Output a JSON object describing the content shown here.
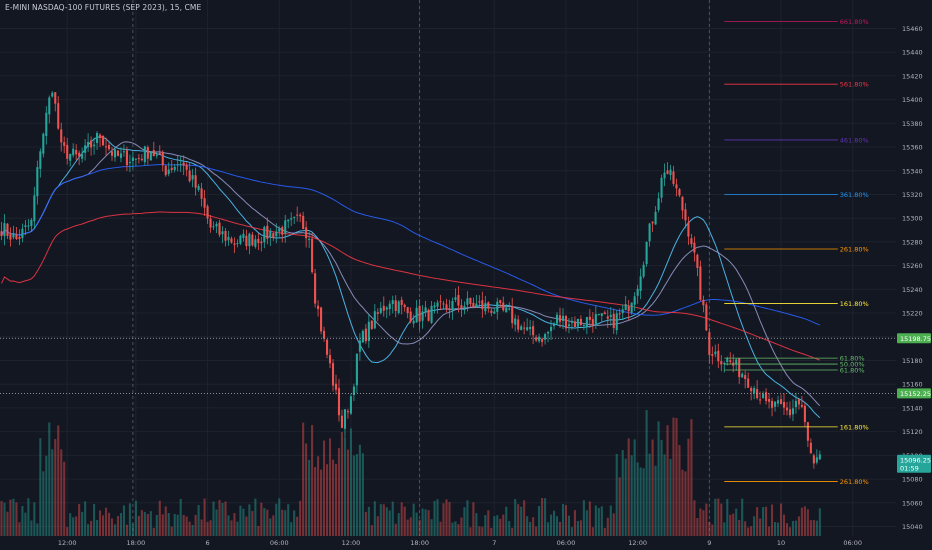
{
  "header": {
    "title": "E-MINI NASDAQ-100 FUTURES (SEP 2023), 15, CME"
  },
  "colors": {
    "background": "#131722",
    "up": "#26a69a",
    "down": "#ef5350",
    "grid": "#1e222d",
    "text": "#b2b5be",
    "ma_blue": "#2962ff",
    "ma_red": "#f23645",
    "ma_light_blue": "#4fc3f7",
    "ma_lavender": "#9598c6"
  },
  "chart_data": {
    "type": "candlestick",
    "ylim": [
      15032,
      15484
    ],
    "y_ticks": [
      15040,
      15060,
      15080,
      15100,
      15120,
      15140,
      15160,
      15180,
      15200,
      15220,
      15240,
      15260,
      15280,
      15300,
      15320,
      15340,
      15360,
      15380,
      15400,
      15420,
      15440,
      15460
    ],
    "x_tick_labels": [
      {
        "label": "12:00",
        "bar": 22
      },
      {
        "label": "18:00",
        "bar": 45
      },
      {
        "label": "6",
        "bar": 69
      },
      {
        "label": "06:00",
        "bar": 93
      },
      {
        "label": "12:00",
        "bar": 117
      },
      {
        "label": "18:00",
        "bar": 140
      },
      {
        "label": "7",
        "bar": 165
      },
      {
        "label": "06:00",
        "bar": 189
      },
      {
        "label": "12:00",
        "bar": 213
      },
      {
        "label": "9",
        "bar": 237
      },
      {
        "label": "10",
        "bar": 261
      },
      {
        "label": "06:00",
        "bar": 285
      }
    ],
    "session_separators": [
      44,
      140,
      237
    ],
    "price_path": [
      [
        0,
        15292
      ],
      [
        5,
        15282
      ],
      [
        10,
        15296
      ],
      [
        13,
        15360
      ],
      [
        17,
        15412
      ],
      [
        20,
        15358
      ],
      [
        26,
        15350
      ],
      [
        33,
        15370
      ],
      [
        38,
        15352
      ],
      [
        45,
        15350
      ],
      [
        50,
        15358
      ],
      [
        55,
        15341
      ],
      [
        60,
        15348
      ],
      [
        66,
        15322
      ],
      [
        70,
        15292
      ],
      [
        78,
        15280
      ],
      [
        86,
        15284
      ],
      [
        93,
        15290
      ],
      [
        100,
        15298
      ],
      [
        103,
        15286
      ],
      [
        105,
        15235
      ],
      [
        108,
        15195
      ],
      [
        110,
        15175
      ],
      [
        114,
        15125
      ],
      [
        117,
        15150
      ],
      [
        120,
        15195
      ],
      [
        125,
        15215
      ],
      [
        130,
        15232
      ],
      [
        136,
        15220
      ],
      [
        140,
        15218
      ],
      [
        146,
        15222
      ],
      [
        152,
        15228
      ],
      [
        160,
        15226
      ],
      [
        165,
        15224
      ],
      [
        170,
        15218
      ],
      [
        177,
        15202
      ],
      [
        182,
        15200
      ],
      [
        186,
        15215
      ],
      [
        193,
        15212
      ],
      [
        198,
        15216
      ],
      [
        204,
        15212
      ],
      [
        209,
        15222
      ],
      [
        213,
        15246
      ],
      [
        218,
        15300
      ],
      [
        222,
        15342
      ],
      [
        225,
        15330
      ],
      [
        228,
        15308
      ],
      [
        231,
        15282
      ],
      [
        234,
        15236
      ],
      [
        237,
        15190
      ],
      [
        240,
        15184
      ],
      [
        244,
        15178
      ],
      [
        248,
        15170
      ],
      [
        252,
        15158
      ],
      [
        256,
        15142
      ],
      [
        260,
        15140
      ],
      [
        264,
        15136
      ],
      [
        266,
        15146
      ],
      [
        268,
        15140
      ],
      [
        270,
        15110
      ],
      [
        272,
        15090
      ],
      [
        274,
        15096
      ]
    ],
    "volume_level": "normal",
    "price_labels": [
      {
        "price": 15198.75,
        "text": "15198.75",
        "color": "#4caf50"
      },
      {
        "price": 15152.25,
        "text": "15152.25",
        "color": "#4caf50"
      },
      {
        "price": 15096.25,
        "text": "15096.25",
        "color": "#26a69a",
        "countdown": "01:59"
      }
    ],
    "dotted_lines": [
      15198.75,
      15152.25
    ],
    "fib_levels": [
      {
        "label": "661.80%",
        "price": 15466,
        "color": "#c2185b"
      },
      {
        "label": "561.80%",
        "price": 15413,
        "color": "#f23645"
      },
      {
        "label": "461.80%",
        "price": 15366,
        "color": "#5e35b1"
      },
      {
        "label": "361.80%",
        "price": 15320,
        "color": "#2196f3"
      },
      {
        "label": "261.80%",
        "price": 15274,
        "color": "#ff9800"
      },
      {
        "label": "161.80%",
        "price": 15228,
        "color": "#ffeb3b"
      },
      {
        "label": "61.80%",
        "price": 15182,
        "color": "#66bb6a"
      },
      {
        "label": "50.00%",
        "price": 15177,
        "color": "#66bb6a"
      },
      {
        "label": "61.80%",
        "price": 15172,
        "color": "#66bb6a"
      },
      {
        "label": "161.80%",
        "price": 15124,
        "color": "#ffeb3b"
      },
      {
        "label": "261.80%",
        "price": 15078,
        "color": "#ff9800"
      }
    ]
  }
}
